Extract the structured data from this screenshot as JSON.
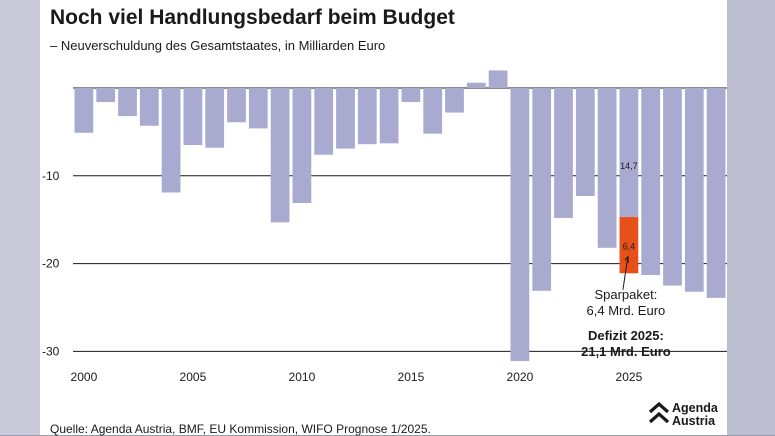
{
  "header": {
    "title": "Noch viel Handlungsbedarf beim Budget",
    "subtitle": "– Neuverschuldung des Gesamtstaates, in Milliarden Euro"
  },
  "footer": {
    "source": "Quelle: Agenda Austria, BMF, EU Kommission, WIFO Prognose 1/2025.",
    "logo_line1": "Agenda",
    "logo_line2": "Austria"
  },
  "colors": {
    "bar": "#a8aacf",
    "highlight": "#e8501a",
    "grid": "#1a1a1a",
    "text": "#1a1a1a"
  },
  "chart_data": {
    "type": "bar",
    "title": "Noch viel Handlungsbedarf beim Budget",
    "subtitle": "– Neuverschuldung des Gesamtstaates, in Milliarden Euro",
    "x": [
      2000,
      2001,
      2002,
      2003,
      2004,
      2005,
      2006,
      2007,
      2008,
      2009,
      2010,
      2011,
      2012,
      2013,
      2014,
      2015,
      2016,
      2017,
      2018,
      2019,
      2020,
      2021,
      2022,
      2023,
      2024,
      2025,
      2026,
      2027,
      2028,
      2029
    ],
    "values": [
      -5.1,
      -1.6,
      -3.2,
      -4.3,
      -11.9,
      -6.5,
      -6.8,
      -3.9,
      -4.6,
      -15.3,
      -13.1,
      -7.6,
      -6.9,
      -6.4,
      -6.3,
      -1.6,
      -5.2,
      -2.8,
      0.6,
      2.0,
      -31.1,
      -23.1,
      -14.8,
      -12.3,
      -18.2,
      -21.1,
      -21.3,
      -22.5,
      -23.2,
      -23.9
    ],
    "ylim": [
      -31.5,
      2.5
    ],
    "yticks": [
      -10,
      -20,
      -30
    ],
    "ytick_labels": [
      "-10",
      "-20",
      "-30"
    ],
    "xticks": [
      2000,
      2005,
      2010,
      2015,
      2020,
      2025
    ],
    "xtick_labels": [
      "2000",
      "2005",
      "2010",
      "2015",
      "2020",
      "2025"
    ],
    "highlight": {
      "year": 2025,
      "base_value": -14.7,
      "base_label": "14,7",
      "sparpaket_value": 6.4,
      "sparpaket_label": "6,4"
    },
    "annotations": {
      "sparpaket_line1": "Sparpaket:",
      "sparpaket_line2": "6,4 Mrd. Euro",
      "deficit_line1": "Defizit 2025:",
      "deficit_line2": "21,1 Mrd. Euro"
    },
    "grid": true,
    "legend": "none"
  }
}
